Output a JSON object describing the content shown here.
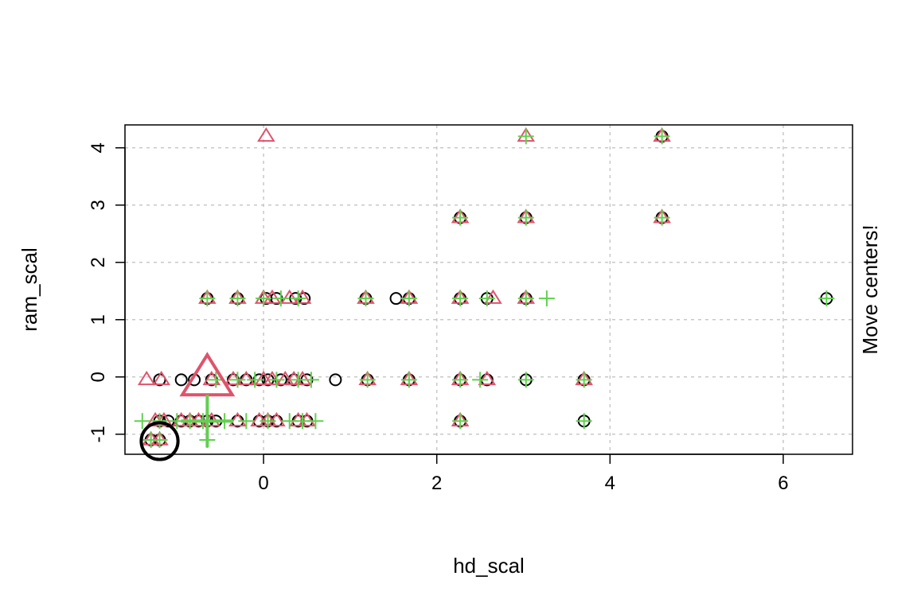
{
  "chart_data": {
    "type": "scatter",
    "title": "",
    "xlabel": "hd_scal",
    "ylabel": "ram_scal",
    "side_label": "Move centers!",
    "xlim": [
      -1.6,
      6.8
    ],
    "ylim": [
      -1.35,
      4.4
    ],
    "x_ticks": [
      0,
      2,
      4,
      6
    ],
    "y_ticks": [
      -1,
      0,
      1,
      2,
      3,
      4
    ],
    "grid": true,
    "colors": {
      "cluster1": "#000000",
      "cluster2": "#DF536B",
      "cluster3": "#61D04F"
    },
    "series": [
      {
        "marker": "circle",
        "color": "#000000",
        "points": [
          [
            -1.3,
            -1.1
          ],
          [
            -1.2,
            -1.1
          ],
          [
            -1.2,
            -0.77
          ],
          [
            -1.1,
            -0.77
          ],
          [
            -0.95,
            -0.77
          ],
          [
            -0.85,
            -0.77
          ],
          [
            -0.75,
            -0.77
          ],
          [
            -0.65,
            -0.77
          ],
          [
            -0.55,
            -0.77
          ],
          [
            -0.3,
            -0.77
          ],
          [
            -0.05,
            -0.77
          ],
          [
            0.05,
            -0.77
          ],
          [
            0.15,
            -0.77
          ],
          [
            0.4,
            -0.77
          ],
          [
            0.5,
            -0.77
          ],
          [
            2.27,
            -0.77
          ],
          [
            3.7,
            -0.77
          ],
          [
            -1.2,
            -0.05
          ],
          [
            -0.95,
            -0.05
          ],
          [
            -0.8,
            -0.05
          ],
          [
            -0.6,
            -0.05
          ],
          [
            -0.35,
            -0.05
          ],
          [
            -0.2,
            -0.05
          ],
          [
            -0.05,
            -0.05
          ],
          [
            0.05,
            -0.05
          ],
          [
            0.2,
            -0.05
          ],
          [
            0.35,
            -0.05
          ],
          [
            0.5,
            -0.05
          ],
          [
            0.83,
            -0.05
          ],
          [
            1.2,
            -0.05
          ],
          [
            1.68,
            -0.05
          ],
          [
            2.27,
            -0.05
          ],
          [
            2.58,
            -0.05
          ],
          [
            3.03,
            -0.05
          ],
          [
            3.7,
            -0.05
          ],
          [
            -0.65,
            1.37
          ],
          [
            -0.3,
            1.37
          ],
          [
            0.03,
            1.37
          ],
          [
            0.15,
            1.37
          ],
          [
            0.37,
            1.37
          ],
          [
            0.47,
            1.37
          ],
          [
            1.18,
            1.37
          ],
          [
            1.53,
            1.37
          ],
          [
            1.68,
            1.37
          ],
          [
            2.27,
            1.37
          ],
          [
            2.58,
            1.37
          ],
          [
            3.03,
            1.37
          ],
          [
            6.5,
            1.37
          ],
          [
            2.27,
            2.78
          ],
          [
            3.03,
            2.78
          ],
          [
            4.6,
            2.78
          ],
          [
            4.6,
            4.2
          ]
        ]
      },
      {
        "marker": "triangle",
        "color": "#DF536B",
        "points": [
          [
            -1.3,
            -1.1
          ],
          [
            -1.2,
            -1.1
          ],
          [
            -1.25,
            -0.77
          ],
          [
            -1.15,
            -0.77
          ],
          [
            -0.95,
            -0.77
          ],
          [
            -0.85,
            -0.77
          ],
          [
            -0.75,
            -0.77
          ],
          [
            -0.6,
            -0.77
          ],
          [
            -0.3,
            -0.77
          ],
          [
            -0.05,
            -0.77
          ],
          [
            0.05,
            -0.77
          ],
          [
            0.15,
            -0.77
          ],
          [
            0.4,
            -0.77
          ],
          [
            0.5,
            -0.77
          ],
          [
            2.27,
            -0.77
          ],
          [
            -1.35,
            -0.05
          ],
          [
            -1.18,
            -0.05
          ],
          [
            -0.6,
            -0.05
          ],
          [
            -0.35,
            -0.05
          ],
          [
            -0.2,
            -0.05
          ],
          [
            0.0,
            -0.05
          ],
          [
            0.1,
            -0.05
          ],
          [
            0.25,
            -0.05
          ],
          [
            0.35,
            -0.05
          ],
          [
            0.45,
            -0.05
          ],
          [
            1.2,
            -0.05
          ],
          [
            1.68,
            -0.05
          ],
          [
            2.27,
            -0.05
          ],
          [
            2.58,
            -0.05
          ],
          [
            3.7,
            -0.05
          ],
          [
            -0.65,
            1.37
          ],
          [
            -0.3,
            1.37
          ],
          [
            0.0,
            1.37
          ],
          [
            0.1,
            1.37
          ],
          [
            0.3,
            1.37
          ],
          [
            0.45,
            1.37
          ],
          [
            1.18,
            1.37
          ],
          [
            1.68,
            1.37
          ],
          [
            2.27,
            1.37
          ],
          [
            2.65,
            1.37
          ],
          [
            3.03,
            1.37
          ],
          [
            2.27,
            2.78
          ],
          [
            3.03,
            2.78
          ],
          [
            4.6,
            2.78
          ],
          [
            0.03,
            4.2
          ],
          [
            3.03,
            4.2
          ],
          [
            4.6,
            4.2
          ]
        ]
      },
      {
        "marker": "plus",
        "color": "#61D04F",
        "points": [
          [
            -1.3,
            -1.1
          ],
          [
            -1.2,
            -1.1
          ],
          [
            -0.65,
            -1.1
          ],
          [
            -1.4,
            -0.77
          ],
          [
            -1.2,
            -0.77
          ],
          [
            -1.0,
            -0.77
          ],
          [
            -0.85,
            -0.77
          ],
          [
            -0.7,
            -0.77
          ],
          [
            -0.45,
            -0.77
          ],
          [
            -0.2,
            -0.77
          ],
          [
            0.05,
            -0.77
          ],
          [
            0.3,
            -0.77
          ],
          [
            0.45,
            -0.77
          ],
          [
            0.6,
            -0.77
          ],
          [
            2.27,
            -0.77
          ],
          [
            3.7,
            -0.77
          ],
          [
            -0.55,
            -0.05
          ],
          [
            -0.3,
            -0.05
          ],
          [
            -0.1,
            -0.05
          ],
          [
            0.15,
            -0.05
          ],
          [
            0.4,
            -0.05
          ],
          [
            0.55,
            -0.05
          ],
          [
            1.2,
            -0.05
          ],
          [
            1.68,
            -0.05
          ],
          [
            2.27,
            -0.05
          ],
          [
            2.5,
            -0.05
          ],
          [
            3.03,
            -0.05
          ],
          [
            3.7,
            -0.05
          ],
          [
            -0.65,
            1.37
          ],
          [
            -0.3,
            1.37
          ],
          [
            0.0,
            1.37
          ],
          [
            0.2,
            1.37
          ],
          [
            0.4,
            1.37
          ],
          [
            1.18,
            1.37
          ],
          [
            1.68,
            1.37
          ],
          [
            2.27,
            1.37
          ],
          [
            2.58,
            1.37
          ],
          [
            3.03,
            1.37
          ],
          [
            3.27,
            1.37
          ],
          [
            6.5,
            1.37
          ],
          [
            2.27,
            2.78
          ],
          [
            3.03,
            2.78
          ],
          [
            4.6,
            2.78
          ],
          [
            3.03,
            4.2
          ],
          [
            4.6,
            4.2
          ]
        ]
      }
    ],
    "centers": [
      {
        "marker": "circle",
        "color": "#000000",
        "x": -1.2,
        "y": -1.12
      },
      {
        "marker": "triangle",
        "color": "#DF536B",
        "x": -0.65,
        "y": -0.05
      },
      {
        "marker": "plus",
        "color": "#61D04F",
        "x": -0.65,
        "y": -0.77
      }
    ]
  }
}
